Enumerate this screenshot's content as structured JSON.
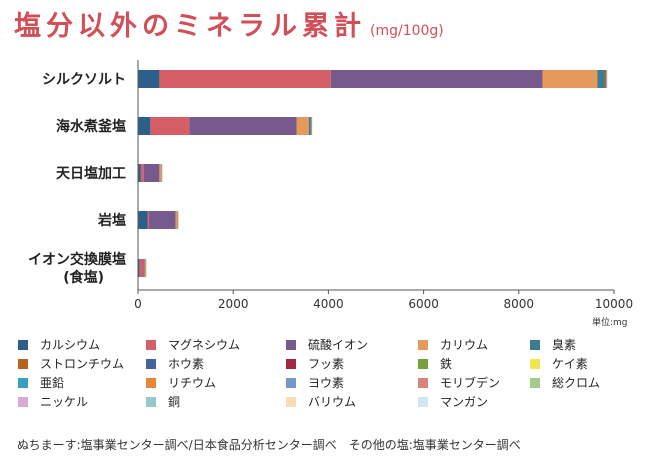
{
  "title": "塩分以外のミネラル累計",
  "title_unit": "(mg/100g)",
  "unit_note": "単位:mg",
  "source": "ぬちまーす:塩事業センター調べ/日本食品分析センター調べ　その他の塩:塩事業センター調べ",
  "chart_data": {
    "type": "bar",
    "orientation": "horizontal",
    "stacked": true,
    "categories": [
      "シルクソルト",
      "海水煮釜塩",
      "天日塩加工",
      "岩塩",
      "イオン交換膜塩\n(食塩)"
    ],
    "xlim": [
      0,
      10000
    ],
    "xticks": [
      0,
      2000,
      4000,
      6000,
      8000,
      10000
    ],
    "legend_position": "bottom",
    "series": [
      {
        "name": "カルシウム",
        "color": "#2c5f8a",
        "values": [
          450,
          260,
          60,
          200,
          30
        ]
      },
      {
        "name": "マグネシウム",
        "color": "#d65f67",
        "values": [
          3600,
          820,
          60,
          30,
          80
        ]
      },
      {
        "name": "硫酸イオン",
        "color": "#775a8d",
        "values": [
          4450,
          2250,
          330,
          560,
          30
        ]
      },
      {
        "name": "カリウム",
        "color": "#e6995a",
        "values": [
          1150,
          260,
          40,
          40,
          20
        ]
      },
      {
        "name": "臭素",
        "color": "#3c7d8c",
        "values": [
          150,
          40,
          5,
          5,
          2
        ]
      },
      {
        "name": "ストロンチウム",
        "color": "#b8641f",
        "values": [
          20,
          8,
          2,
          2,
          1
        ]
      },
      {
        "name": "ホウ素",
        "color": "#44639a",
        "values": [
          15,
          6,
          2,
          2,
          1
        ]
      },
      {
        "name": "フッ素",
        "color": "#9e2b3e",
        "values": [
          5,
          2,
          1,
          1,
          1
        ]
      },
      {
        "name": "鉄",
        "color": "#78a03c",
        "values": [
          5,
          2,
          1,
          1,
          1
        ]
      },
      {
        "name": "ケイ素",
        "color": "#f0e650",
        "values": [
          5,
          2,
          1,
          1,
          1
        ]
      },
      {
        "name": "亜鉛",
        "color": "#3a9fbe",
        "values": [
          2,
          1,
          1,
          1,
          1
        ]
      },
      {
        "name": "リチウム",
        "color": "#e6873c",
        "values": [
          2,
          1,
          1,
          1,
          1
        ]
      },
      {
        "name": "ヨウ素",
        "color": "#7896c8",
        "values": [
          1,
          1,
          1,
          1,
          1
        ]
      },
      {
        "name": "モリブデン",
        "color": "#d8847e",
        "values": [
          1,
          1,
          1,
          1,
          1
        ]
      },
      {
        "name": "総クロム",
        "color": "#a5c88c",
        "values": [
          1,
          1,
          1,
          1,
          1
        ]
      },
      {
        "name": "ニッケル",
        "color": "#d7aad7",
        "values": [
          1,
          1,
          1,
          1,
          1
        ]
      },
      {
        "name": "銅",
        "color": "#96c8c8",
        "values": [
          1,
          1,
          1,
          1,
          1
        ]
      },
      {
        "name": "バリウム",
        "color": "#f5dcb4",
        "values": [
          1,
          1,
          1,
          1,
          1
        ]
      },
      {
        "name": "マンガン",
        "color": "#d2e6f0",
        "values": [
          1,
          1,
          1,
          1,
          1
        ]
      }
    ]
  }
}
